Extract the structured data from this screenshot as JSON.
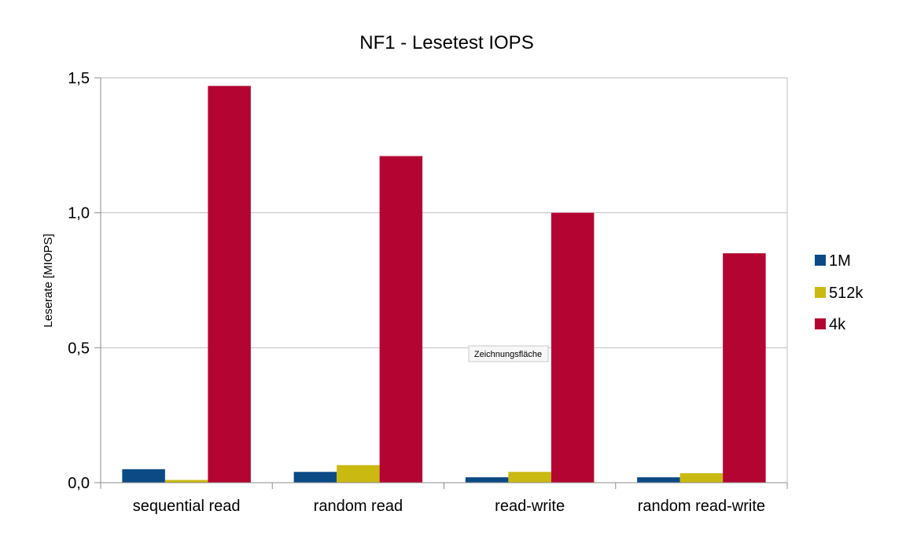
{
  "chart_data": {
    "type": "bar",
    "title": "NF1 - Lesetest IOPS",
    "xlabel": "",
    "ylabel": "Leserate [MIOPS]",
    "categories": [
      "sequential read",
      "random read",
      "read-write",
      "random read-write"
    ],
    "ylim": [
      0,
      1.5
    ],
    "yticks": [
      "0,0",
      "0,5",
      "1,0",
      "1,5"
    ],
    "ytick_values": [
      0,
      0.5,
      1.0,
      1.5
    ],
    "grid": true,
    "legend_position": "right",
    "series": [
      {
        "name": "1M",
        "color": "#0c4a86",
        "values": [
          0.05,
          0.04,
          0.02,
          0.02
        ]
      },
      {
        "name": "512k",
        "color": "#c9b911",
        "values": [
          0.01,
          0.065,
          0.04,
          0.035
        ]
      },
      {
        "name": "4k",
        "color": "#b40532",
        "values": [
          1.47,
          1.21,
          1.0,
          0.85
        ]
      }
    ],
    "annotations": [
      "Zeichnungsfläche"
    ]
  }
}
